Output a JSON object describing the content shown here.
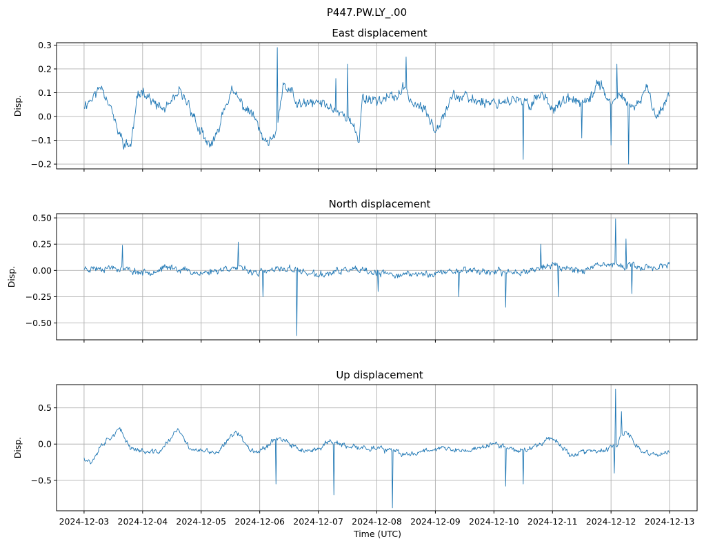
{
  "figure_title": "P447.PW.LY_.00",
  "chart_data": [
    {
      "type": "line",
      "title": "East displacement",
      "xlabel": "",
      "ylabel": "Disp.",
      "x_ticks": [
        "2024-12-03",
        "2024-12-04",
        "2024-12-05",
        "2024-12-06",
        "2024-12-07",
        "2024-12-08",
        "2024-12-09",
        "2024-12-10",
        "2024-12-11",
        "2024-12-12",
        "2024-12-13"
      ],
      "x_tick_labels_visible": false,
      "y_ticks": [
        -0.2,
        -0.1,
        0.0,
        0.1,
        0.2,
        0.3
      ],
      "y_tick_labels": [
        "−0.2",
        "−0.1",
        "0.0",
        "0.1",
        "0.2",
        "0.3"
      ],
      "ylim": [
        -0.22,
        0.31
      ],
      "xlim_days": [
        -0.47,
        10.47
      ],
      "grid": true,
      "color": "#1f77b4",
      "series": {
        "key_days": [
          0,
          0.15,
          0.3,
          0.45,
          0.55,
          0.7,
          0.8,
          0.9,
          1.0,
          1.2,
          1.35,
          1.5,
          1.62,
          1.8,
          1.95,
          2.1,
          2.25,
          2.4,
          2.52,
          2.62,
          2.7,
          2.9,
          3.1,
          3.25,
          3.4,
          3.55,
          3.63,
          3.8,
          4.0,
          4.2,
          4.5,
          4.7,
          4.75,
          5.0,
          5.3,
          5.5,
          5.6,
          5.8,
          6.0,
          6.3,
          6.6,
          7.0,
          7.3,
          7.6,
          7.8,
          8.0,
          8.3,
          8.6,
          8.8,
          9.0,
          9.2,
          9.4,
          9.6,
          9.8,
          10.0
        ],
        "key_values": [
          0.05,
          0.08,
          0.13,
          0.05,
          -0.05,
          -0.12,
          -0.12,
          0.06,
          0.12,
          0.05,
          0.03,
          0.05,
          0.1,
          0.05,
          -0.05,
          -0.12,
          -0.1,
          0.05,
          0.1,
          0.08,
          0.05,
          0.0,
          -0.12,
          -0.1,
          0.12,
          0.1,
          0.05,
          0.05,
          0.06,
          0.04,
          0.0,
          -0.1,
          0.08,
          0.07,
          0.08,
          0.12,
          0.06,
          0.03,
          -0.05,
          0.09,
          0.07,
          0.06,
          0.07,
          0.05,
          0.1,
          0.04,
          0.07,
          0.05,
          0.15,
          0.05,
          0.09,
          0.02,
          0.12,
          0.0,
          0.1
        ],
        "spikes": [
          [
            3.3,
            0.29
          ],
          [
            4.3,
            0.16
          ],
          [
            4.5,
            0.22
          ],
          [
            5.5,
            0.25
          ],
          [
            7.5,
            -0.18
          ],
          [
            8.5,
            -0.09
          ],
          [
            9.1,
            0.22
          ],
          [
            9.3,
            -0.2
          ],
          [
            9.0,
            -0.12
          ]
        ],
        "noise": 0.022,
        "seed": 11
      }
    },
    {
      "type": "line",
      "title": "North displacement",
      "xlabel": "",
      "ylabel": "Disp.",
      "x_ticks": [
        "2024-12-03",
        "2024-12-04",
        "2024-12-05",
        "2024-12-06",
        "2024-12-07",
        "2024-12-08",
        "2024-12-09",
        "2024-12-10",
        "2024-12-11",
        "2024-12-12",
        "2024-12-13"
      ],
      "x_tick_labels_visible": false,
      "y_ticks": [
        -0.5,
        -0.25,
        0.0,
        0.25,
        0.5
      ],
      "y_tick_labels": [
        "−0.50",
        "−0.25",
        "0.00",
        "0.25",
        "0.50"
      ],
      "ylim": [
        -0.66,
        0.54
      ],
      "xlim_days": [
        -0.47,
        10.47
      ],
      "grid": true,
      "color": "#1f77b4",
      "series": {
        "key_days": [
          0,
          0.5,
          1.0,
          1.5,
          2.0,
          2.5,
          3.0,
          3.5,
          4.0,
          4.5,
          5.0,
          5.5,
          6.0,
          6.5,
          7.0,
          7.5,
          8.0,
          8.5,
          9.0,
          9.5,
          10.0
        ],
        "key_values": [
          0.02,
          0.03,
          -0.02,
          0.03,
          -0.03,
          0.03,
          -0.02,
          0.02,
          -0.05,
          0.01,
          -0.03,
          -0.04,
          -0.03,
          0.01,
          -0.02,
          -0.01,
          0.05,
          0.0,
          0.06,
          0.03,
          0.04
        ],
        "spikes": [
          [
            0.66,
            0.24
          ],
          [
            2.63,
            0.27
          ],
          [
            3.06,
            -0.25
          ],
          [
            3.63,
            -0.62
          ],
          [
            5.02,
            -0.2
          ],
          [
            6.4,
            -0.25
          ],
          [
            7.2,
            -0.35
          ],
          [
            7.8,
            0.25
          ],
          [
            8.1,
            -0.25
          ],
          [
            9.08,
            0.49
          ],
          [
            9.25,
            0.3
          ],
          [
            9.35,
            -0.22
          ]
        ],
        "noise": 0.03,
        "seed": 23
      }
    },
    {
      "type": "line",
      "title": "Up displacement",
      "xlabel": "Time (UTC)",
      "ylabel": "Disp.",
      "x_ticks": [
        "2024-12-03",
        "2024-12-04",
        "2024-12-05",
        "2024-12-06",
        "2024-12-07",
        "2024-12-08",
        "2024-12-09",
        "2024-12-10",
        "2024-12-11",
        "2024-12-12",
        "2024-12-13"
      ],
      "x_tick_labels_visible": true,
      "y_ticks": [
        -0.5,
        0.0,
        0.5
      ],
      "y_tick_labels": [
        "−0.5",
        "0.0",
        "0.5"
      ],
      "ylim": [
        -0.92,
        0.82
      ],
      "xlim_days": [
        -0.47,
        10.47
      ],
      "grid": true,
      "color": "#1f77b4",
      "series": {
        "key_days": [
          0,
          0.12,
          0.3,
          0.6,
          0.8,
          1.1,
          1.3,
          1.6,
          1.8,
          2.0,
          2.3,
          2.6,
          2.8,
          3.0,
          3.3,
          3.6,
          3.9,
          4.2,
          4.5,
          5.0,
          5.5,
          6.0,
          6.5,
          7.0,
          7.5,
          8.0,
          8.3,
          8.6,
          8.9,
          9.1,
          9.25,
          9.5,
          9.8,
          10.0
        ],
        "key_values": [
          -0.18,
          -0.25,
          0.0,
          0.2,
          -0.05,
          -0.12,
          -0.1,
          0.2,
          -0.05,
          -0.1,
          -0.12,
          0.2,
          -0.05,
          -0.1,
          0.1,
          -0.05,
          -0.12,
          0.05,
          -0.05,
          -0.05,
          -0.15,
          -0.05,
          -0.1,
          0.0,
          -0.1,
          0.1,
          -0.15,
          -0.1,
          -0.1,
          0.0,
          0.18,
          -0.1,
          -0.15,
          -0.12
        ],
        "spikes": [
          [
            3.28,
            -0.55
          ],
          [
            4.27,
            -0.7
          ],
          [
            5.27,
            -0.88
          ],
          [
            7.2,
            -0.58
          ],
          [
            7.5,
            -0.55
          ],
          [
            9.08,
            0.76
          ],
          [
            9.18,
            0.45
          ],
          [
            9.05,
            -0.4
          ]
        ],
        "noise": 0.035,
        "seed": 37
      }
    }
  ]
}
